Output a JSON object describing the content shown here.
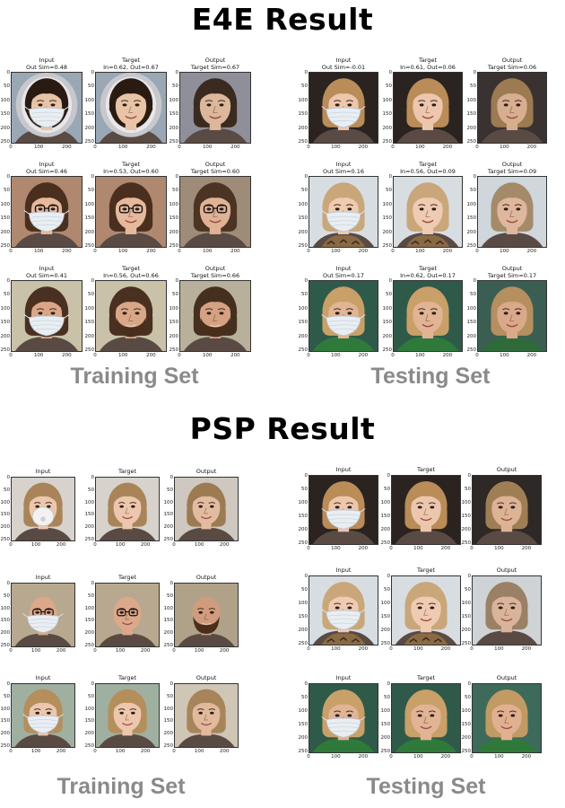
{
  "sections": [
    {
      "title": "E4E Result",
      "sets": [
        {
          "label": "Training Set",
          "rows": [
            {
              "panels": [
                {
                  "caption": [
                    "Input",
                    "Out Sim=0.48"
                  ],
                  "skin": "#e8c4a6",
                  "hair": "#2a1b12",
                  "bg": "#9aa7b5",
                  "mask": true,
                  "hood": true,
                  "name": "child-masked-face"
                },
                {
                  "caption": [
                    "Target",
                    "In=0.62, Out=0.67"
                  ],
                  "skin": "#e8c4a6",
                  "hair": "#2a1b12",
                  "bg": "#9aa7b5",
                  "mask": false,
                  "hood": true,
                  "name": "child-target-face"
                },
                {
                  "caption": [
                    "Output",
                    "Target Sim=0.67"
                  ],
                  "skin": "#dcb79b",
                  "hair": "#3a2a20",
                  "bg": "#8f8f99",
                  "mask": false,
                  "hood": false,
                  "name": "child-output-face"
                }
              ]
            },
            {
              "panels": [
                {
                  "caption": [
                    "Input",
                    "Out Sim=0.46"
                  ],
                  "skin": "#e6b99c",
                  "hair": "#4a2e1e",
                  "bg": "#b08870",
                  "mask": true,
                  "glasses": true,
                  "name": "woman-glasses-masked-face"
                },
                {
                  "caption": [
                    "Target",
                    "In=0.53, Out=0.60"
                  ],
                  "skin": "#e6b99c",
                  "hair": "#4a2e1e",
                  "bg": "#b08870",
                  "mask": false,
                  "glasses": true,
                  "name": "woman-glasses-target-face"
                },
                {
                  "caption": [
                    "Output",
                    "Target Sim=0.60"
                  ],
                  "skin": "#dfb296",
                  "hair": "#4b3424",
                  "bg": "#9e8b78",
                  "mask": false,
                  "glasses": true,
                  "name": "woman-glasses-output-face"
                }
              ]
            },
            {
              "panels": [
                {
                  "caption": [
                    "Input",
                    "Out Sim=0.41"
                  ],
                  "skin": "#d9a788",
                  "hair": "#4a3020",
                  "bg": "#c9c2a8",
                  "mask": true,
                  "beard": true,
                  "name": "bearded-man-masked-face"
                },
                {
                  "caption": [
                    "Target",
                    "In=0.56, Out=0.66"
                  ],
                  "skin": "#d9a788",
                  "hair": "#4a3020",
                  "bg": "#c9c2a8",
                  "mask": false,
                  "beard": true,
                  "name": "bearded-man-target-face"
                },
                {
                  "caption": [
                    "Output",
                    "Target Sim=0.66"
                  ],
                  "skin": "#d4a182",
                  "hair": "#45301f",
                  "bg": "#b8b09a",
                  "mask": false,
                  "beard": true,
                  "name": "bearded-man-output-face"
                }
              ]
            }
          ]
        },
        {
          "label": "Testing Set",
          "rows": [
            {
              "panels": [
                {
                  "caption": [
                    "Input",
                    "Out Sim=-0.01"
                  ],
                  "skin": "#ecc6ad",
                  "hair": "#b98c58",
                  "bg": "#2a2320",
                  "mask": true,
                  "name": "blonde-woman-masked-face"
                },
                {
                  "caption": [
                    "Target",
                    "In=0.61, Out=0.06"
                  ],
                  "skin": "#ecc6ad",
                  "hair": "#b98c58",
                  "bg": "#2a2320",
                  "mask": false,
                  "name": "blonde-woman-target-face"
                },
                {
                  "caption": [
                    "Output",
                    "Target Sim=0.06"
                  ],
                  "skin": "#d8ae90",
                  "hair": "#9c7a52",
                  "bg": "#3a3230",
                  "mask": false,
                  "name": "blonde-woman-output-face"
                }
              ]
            },
            {
              "panels": [
                {
                  "caption": [
                    "Input",
                    "Out Sim=0.16"
                  ],
                  "skin": "#efcbb2",
                  "hair": "#c9a77a",
                  "bg": "#d8dde2",
                  "mask": true,
                  "scarf": true,
                  "name": "older-woman-masked-face"
                },
                {
                  "caption": [
                    "Target",
                    "In=0.56, Out=0.09"
                  ],
                  "skin": "#efcbb2",
                  "hair": "#c9a77a",
                  "bg": "#d8dde2",
                  "mask": false,
                  "scarf": true,
                  "name": "older-woman-target-face"
                },
                {
                  "caption": [
                    "Output",
                    "Target Sim=0.09"
                  ],
                  "skin": "#dfb79d",
                  "hair": "#a58a6a",
                  "bg": "#cfd6dc",
                  "mask": false,
                  "name": "older-woman-output-face"
                }
              ]
            },
            {
              "panels": [
                {
                  "caption": [
                    "Input",
                    "Out Sim=0.17"
                  ],
                  "skin": "#e2b496",
                  "hair": "#c9a068",
                  "bg": "#2f5a4a",
                  "mask": true,
                  "shirt": "#2f7a3a",
                  "name": "driver-masked-face"
                },
                {
                  "caption": [
                    "Target",
                    "In=0.62, Out=0.17"
                  ],
                  "skin": "#e2b496",
                  "hair": "#c9a068",
                  "bg": "#2f5a4a",
                  "mask": false,
                  "shirt": "#2f7a3a",
                  "name": "driver-target-face"
                },
                {
                  "caption": [
                    "Output",
                    "Target Sim=0.17"
                  ],
                  "skin": "#d9a98a",
                  "hair": "#b58f60",
                  "bg": "#3a5e52",
                  "mask": false,
                  "shirt": "#2f6a3a",
                  "name": "driver-output-face"
                }
              ]
            }
          ]
        }
      ]
    },
    {
      "title": "PSP Result",
      "sets": [
        {
          "label": "Training Set",
          "rows": [
            {
              "panels": [
                {
                  "caption": [
                    "Input"
                  ],
                  "skin": "#ecc6ad",
                  "hair": "#a98458",
                  "bg": "#d7d2cc",
                  "mask": true,
                  "respirator": true,
                  "name": "smiling-woman-masked-face"
                },
                {
                  "caption": [
                    "Target"
                  ],
                  "skin": "#ecc6ad",
                  "hair": "#a98458",
                  "bg": "#d7d2cc",
                  "mask": false,
                  "name": "smiling-woman-target-face"
                },
                {
                  "caption": [
                    "Output"
                  ],
                  "skin": "#e3bba0",
                  "hair": "#9c7a52",
                  "bg": "#cfc8c0",
                  "mask": false,
                  "name": "smiling-woman-output-face"
                }
              ]
            },
            {
              "panels": [
                {
                  "caption": [
                    "Input"
                  ],
                  "skin": "#dca88a",
                  "hair": "#dca88a",
                  "bg": "#b8a890",
                  "mask": true,
                  "glasses": true,
                  "bald": true,
                  "name": "bald-man-masked-face"
                },
                {
                  "caption": [
                    "Target"
                  ],
                  "skin": "#dca88a",
                  "hair": "#dca88a",
                  "bg": "#b8a890",
                  "mask": false,
                  "glasses": true,
                  "bald": true,
                  "name": "bald-man-target-face"
                },
                {
                  "caption": [
                    "Output"
                  ],
                  "skin": "#d19c7e",
                  "hair": "#d19c7e",
                  "bg": "#b0a288",
                  "mask": false,
                  "beard": true,
                  "bald": true,
                  "name": "bald-man-output-face"
                }
              ]
            },
            {
              "panels": [
                {
                  "caption": [
                    "Input"
                  ],
                  "skin": "#ecc6ad",
                  "hair": "#b48f5c",
                  "bg": "#9fb0a0",
                  "mask": true,
                  "name": "boy-masked-face"
                },
                {
                  "caption": [
                    "Target"
                  ],
                  "skin": "#ecc6ad",
                  "hair": "#b48f5c",
                  "bg": "#9fb0a0",
                  "mask": false,
                  "name": "boy-target-face"
                },
                {
                  "caption": [
                    "Output"
                  ],
                  "skin": "#e2b99c",
                  "hair": "#a8845a",
                  "bg": "#cfc6b6",
                  "mask": false,
                  "name": "boy-output-face"
                }
              ]
            }
          ]
        },
        {
          "label": "Testing Set",
          "rows": [
            {
              "panels": [
                {
                  "caption": [
                    "Input"
                  ],
                  "skin": "#ecc6ad",
                  "hair": "#b98c58",
                  "bg": "#2a2320",
                  "mask": true,
                  "name": "psp-blonde-woman-masked-face"
                },
                {
                  "caption": [
                    "Target"
                  ],
                  "skin": "#ecc6ad",
                  "hair": "#b98c58",
                  "bg": "#2a2320",
                  "mask": false,
                  "name": "psp-blonde-woman-target-face"
                },
                {
                  "caption": [
                    "Output"
                  ],
                  "skin": "#ddb396",
                  "hair": "#a07e55",
                  "bg": "#2e2826",
                  "mask": false,
                  "name": "psp-blonde-woman-output-face"
                }
              ]
            },
            {
              "panels": [
                {
                  "caption": [
                    "Input"
                  ],
                  "skin": "#efcbb2",
                  "hair": "#c9a77a",
                  "bg": "#d8dde2",
                  "mask": true,
                  "scarf": true,
                  "name": "psp-older-woman-masked-face"
                },
                {
                  "caption": [
                    "Target"
                  ],
                  "skin": "#efcbb2",
                  "hair": "#c9a77a",
                  "bg": "#d8dde2",
                  "mask": false,
                  "scarf": true,
                  "name": "psp-older-woman-target-face"
                },
                {
                  "caption": [
                    "Output"
                  ],
                  "skin": "#d9b49a",
                  "hair": "#9a8066",
                  "bg": "#cfd3d6",
                  "mask": false,
                  "name": "psp-older-woman-output-face"
                }
              ]
            },
            {
              "panels": [
                {
                  "caption": [
                    "Input"
                  ],
                  "skin": "#e2b496",
                  "hair": "#c9a068",
                  "bg": "#2f5a4a",
                  "mask": true,
                  "shirt": "#2f7a3a",
                  "name": "psp-driver-masked-face"
                },
                {
                  "caption": [
                    "Target"
                  ],
                  "skin": "#e2b496",
                  "hair": "#c9a068",
                  "bg": "#2f5a4a",
                  "mask": false,
                  "shirt": "#2f7a3a",
                  "name": "psp-driver-target-face"
                },
                {
                  "caption": [
                    "Output"
                  ],
                  "skin": "#e0b091",
                  "hair": "#c29a64",
                  "bg": "#3d6a5a",
                  "mask": false,
                  "shirt": "#2f7a3a",
                  "name": "psp-driver-output-face"
                }
              ]
            }
          ]
        }
      ]
    }
  ],
  "axis": {
    "y_ticks": [
      "0",
      "50",
      "100",
      "150",
      "200",
      "250"
    ],
    "x_ticks": [
      "0",
      "100",
      "200"
    ]
  }
}
